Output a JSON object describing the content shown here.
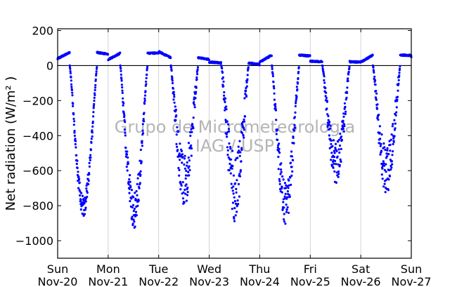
{
  "chart_data": {
    "type": "scatter",
    "ylabel": "Net radiation (W/m² )",
    "xlabel": "",
    "ylim": [
      -1100,
      210
    ],
    "yticks": [
      200,
      0,
      -200,
      -400,
      -600,
      -800,
      -1000
    ],
    "ytick_labels": [
      "200",
      "0",
      "−200",
      "−400",
      "−600",
      "−800",
      "−1000"
    ],
    "xlim": [
      0,
      7
    ],
    "xticks": [
      {
        "day": 0,
        "line1": "Sun",
        "line2": "Nov-20"
      },
      {
        "day": 1,
        "line1": "Mon",
        "line2": "Nov-21"
      },
      {
        "day": 2,
        "line1": "Tue",
        "line2": "Nov-22"
      },
      {
        "day": 3,
        "line1": "Wed",
        "line2": "Nov-23"
      },
      {
        "day": 4,
        "line1": "Thu",
        "line2": "Nov-24"
      },
      {
        "day": 5,
        "line1": "Fri",
        "line2": "Nov-25"
      },
      {
        "day": 6,
        "line1": "Sat",
        "line2": "Nov-26"
      },
      {
        "day": 7,
        "line1": "Sun",
        "line2": "Nov-27"
      }
    ],
    "grid": "vertical",
    "zero_line": true,
    "marker_color": "#0000ff",
    "watermark": [
      "Grupo de Micrometeorologia",
      "IAG / USP"
    ],
    "days": [
      {
        "night": [
          40,
          75,
          65
        ],
        "min": -800,
        "scatter": 60,
        "seed": 3
      },
      {
        "night": [
          35,
          70,
          72
        ],
        "min": -820,
        "scatter": 110,
        "seed": 7
      },
      {
        "night": [
          80,
          45,
          35
        ],
        "min": -660,
        "scatter": 150,
        "seed": 11
      },
      {
        "night": [
          20,
          15,
          5
        ],
        "min": -700,
        "scatter": 190,
        "seed": 17
      },
      {
        "night": [
          20,
          60,
          55
        ],
        "min": -780,
        "scatter": 130,
        "seed": 23
      },
      {
        "night": [
          25,
          22,
          20
        ],
        "min": -560,
        "scatter": 120,
        "seed": 29
      },
      {
        "night": [
          20,
          60,
          58
        ],
        "min": -600,
        "scatter": 140,
        "seed": 31
      },
      {
        "night": [
          50,
          55,
          55
        ],
        "min": 0,
        "scatter": 0,
        "seed": 37
      }
    ],
    "series": [
      {
        "name": "",
        "x_units": "days since Sun Nov-20",
        "y_units": "W/m2"
      }
    ]
  }
}
